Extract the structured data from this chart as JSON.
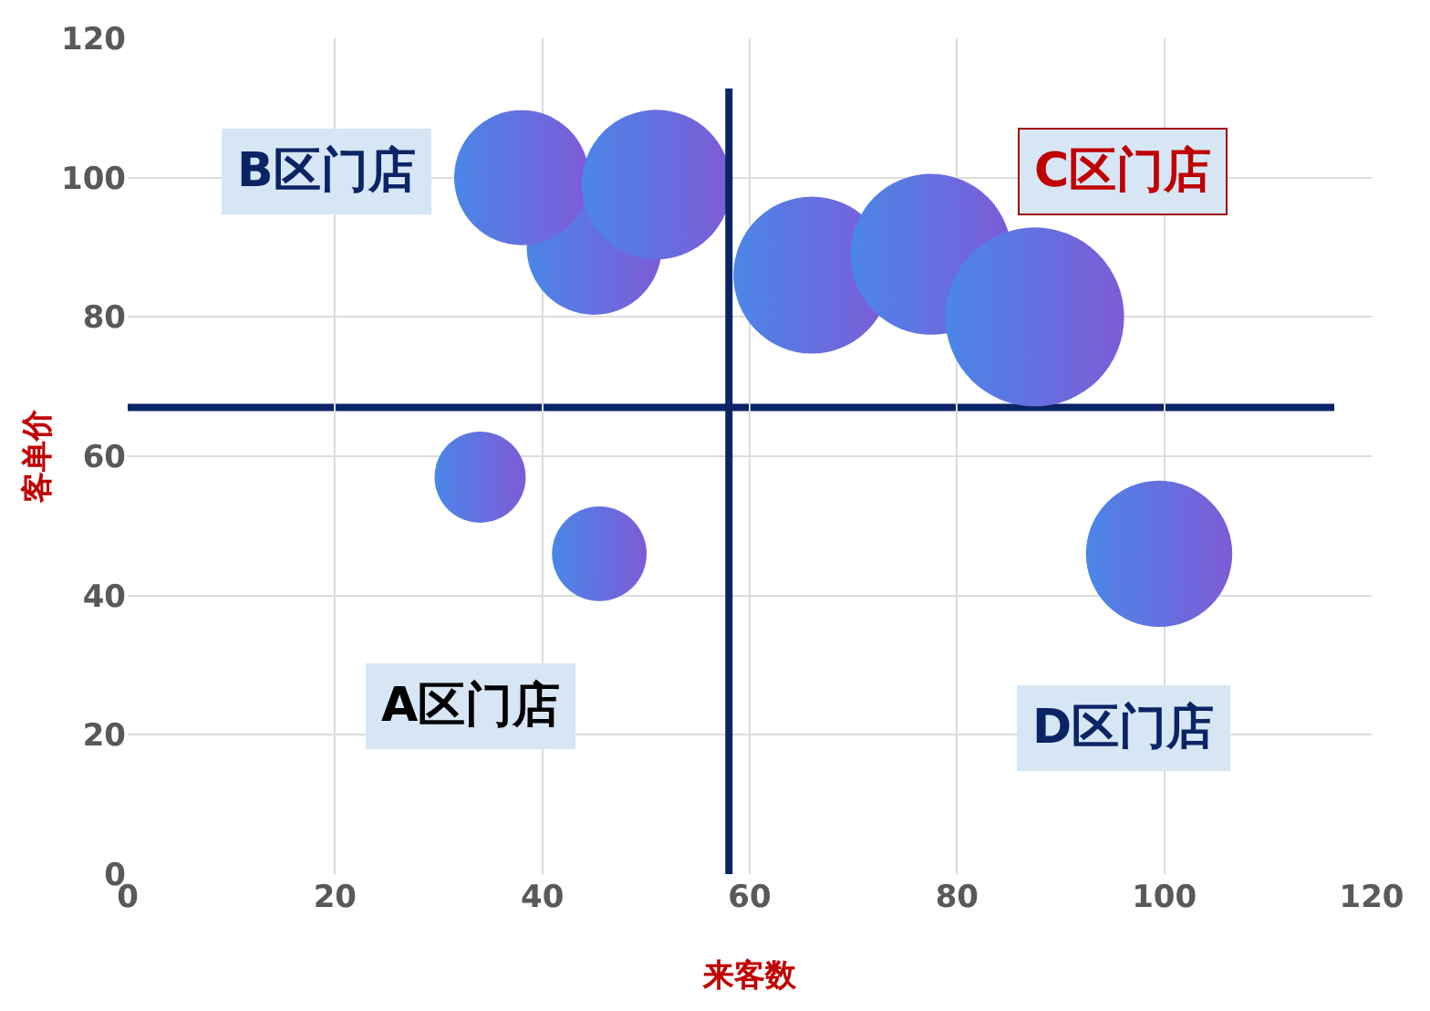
{
  "chart_data": {
    "type": "bubble",
    "xlabel": "来客数",
    "ylabel": "客单价",
    "x": [
      34,
      45.5,
      45,
      38,
      51,
      66,
      77.5,
      87.5,
      99.5
    ],
    "series": [
      {
        "color": "#4a86e8",
        "values": [
          57,
          46,
          90,
          100,
          99,
          86,
          89,
          80,
          46
        ],
        "sizes": [
          0.26,
          0.28,
          0.57,
          0.57,
          0.7,
          0.77,
          0.81,
          1,
          0.67
        ]
      }
    ],
    "xlim": [
      0,
      120
    ],
    "xticks": [
      0,
      20,
      40,
      60,
      80,
      100,
      120
    ],
    "ylim": [
      0,
      120
    ],
    "yticks": [
      0,
      20,
      40,
      60,
      80,
      100,
      120
    ],
    "grid": true,
    "ref_lines": [
      {
        "axis": "x",
        "value": 58,
        "color": "#0b2466"
      },
      {
        "axis": "y",
        "value": 67,
        "color": "#0b2466"
      }
    ],
    "annotations": [
      "B区门店",
      "C区门店",
      "A区门店",
      "D区门店"
    ]
  }
}
